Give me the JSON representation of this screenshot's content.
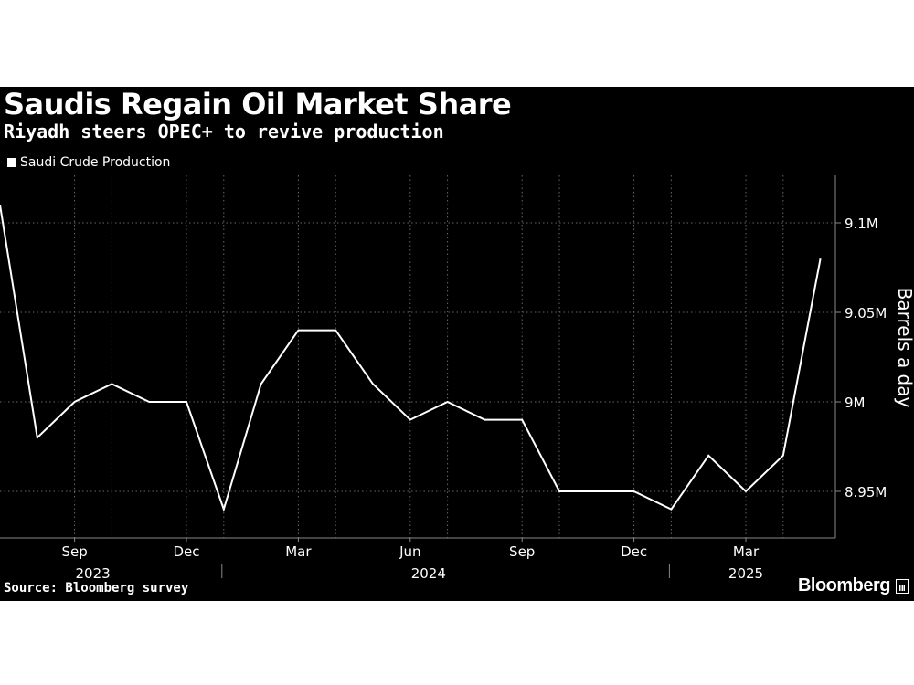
{
  "title": "Saudis Regain Oil Market Share",
  "subtitle": "Riyadh steers OPEC+ to revive production",
  "legend_label": "Saudi Crude Production",
  "source": "Source: Bloomberg survey",
  "brand": "Bloomberg",
  "colors": {
    "background": "#000000",
    "line": "#ffffff",
    "grid": "#666666",
    "text": "#ffffff"
  },
  "chart_data": {
    "type": "line",
    "title": "Saudis Regain Oil Market Share",
    "subtitle": "Riyadh steers OPEC+ to revive production",
    "ylabel": "Barrels a day",
    "ylim": [
      8.925,
      9.13
    ],
    "grid": "vertical dotted",
    "legend_placement": "top-left",
    "y_ticks": [
      {
        "value": 8.95,
        "label": "8.95M"
      },
      {
        "value": 9.0,
        "label": "9M"
      },
      {
        "value": 9.05,
        "label": "9.05M"
      },
      {
        "value": 9.1,
        "label": "9.1M"
      }
    ],
    "month_ticks": [
      {
        "date": "2023-09",
        "label": "Sep"
      },
      {
        "date": "2023-12",
        "label": "Dec"
      },
      {
        "date": "2024-03",
        "label": "Mar"
      },
      {
        "date": "2024-06",
        "label": "Jun"
      },
      {
        "date": "2024-09",
        "label": "Sep"
      },
      {
        "date": "2024-12",
        "label": "Dec"
      },
      {
        "date": "2025-03",
        "label": "Mar"
      }
    ],
    "year_labels": [
      {
        "year": "2023",
        "label": "2023"
      },
      {
        "year": "2024",
        "label": "2024"
      },
      {
        "year": "2025",
        "label": "2025"
      }
    ],
    "x": [
      "2023-07",
      "2023-08",
      "2023-09",
      "2023-10",
      "2023-11",
      "2023-12",
      "2024-01",
      "2024-02",
      "2024-03",
      "2024-04",
      "2024-05",
      "2024-06",
      "2024-07",
      "2024-08",
      "2024-09",
      "2024-10",
      "2024-11",
      "2024-12",
      "2025-01",
      "2025-02",
      "2025-03",
      "2025-04",
      "2025-05"
    ],
    "series": [
      {
        "name": "Saudi Crude Production",
        "values": [
          9.11,
          8.98,
          9.0,
          9.01,
          9.0,
          9.0,
          8.94,
          9.01,
          9.04,
          9.04,
          9.01,
          8.99,
          9.0,
          8.99,
          8.99,
          8.95,
          8.95,
          8.95,
          8.94,
          8.97,
          8.95,
          8.97,
          9.08
        ]
      }
    ]
  }
}
